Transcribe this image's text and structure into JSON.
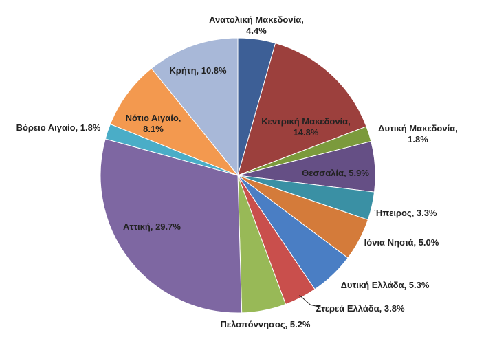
{
  "chart_data": {
    "type": "pie",
    "title": "",
    "unit": "%",
    "slices": [
      {
        "label": "Ανατολική Μακεδονία",
        "value": 4.4,
        "text": "4.4%",
        "color": "#3d5f96"
      },
      {
        "label": "Κεντρική Μακεδονία",
        "value": 14.8,
        "text": "14.8%",
        "color": "#9c403d"
      },
      {
        "label": "Δυτική Μακεδονία",
        "value": 1.8,
        "text": "1.8%",
        "color": "#7b9a3c"
      },
      {
        "label": "Θεσσαλία",
        "value": 5.9,
        "text": "5.9%",
        "color": "#654f85"
      },
      {
        "label": "Ήπειρος",
        "value": 3.3,
        "text": "3.3%",
        "color": "#3a90a4"
      },
      {
        "label": "Ιόνια Νησιά",
        "value": 5.0,
        "text": "5.0%",
        "color": "#d47b3a"
      },
      {
        "label": "Δυτική Ελλάδα",
        "value": 5.3,
        "text": "5.3%",
        "color": "#4a7ec4"
      },
      {
        "label": "Στερεά Ελλάδα",
        "value": 3.8,
        "text": "3.8%",
        "color": "#c94f4c"
      },
      {
        "label": "Πελοπόννησος",
        "value": 5.2,
        "text": "5.2%",
        "color": "#98b957"
      },
      {
        "label": "Αττική",
        "value": 29.7,
        "text": "29.7%",
        "color": "#7e67a2"
      },
      {
        "label": "Βόρειο Αιγαίο",
        "value": 1.8,
        "text": "1.8%",
        "color": "#4aadc7"
      },
      {
        "label": "Νότιο Αιγαίο",
        "value": 8.1,
        "text": "8.1%",
        "color": "#f3994f"
      },
      {
        "label": "Κρήτη",
        "value": 10.8,
        "text": "10.8%",
        "color": "#a8b8d8"
      }
    ]
  }
}
